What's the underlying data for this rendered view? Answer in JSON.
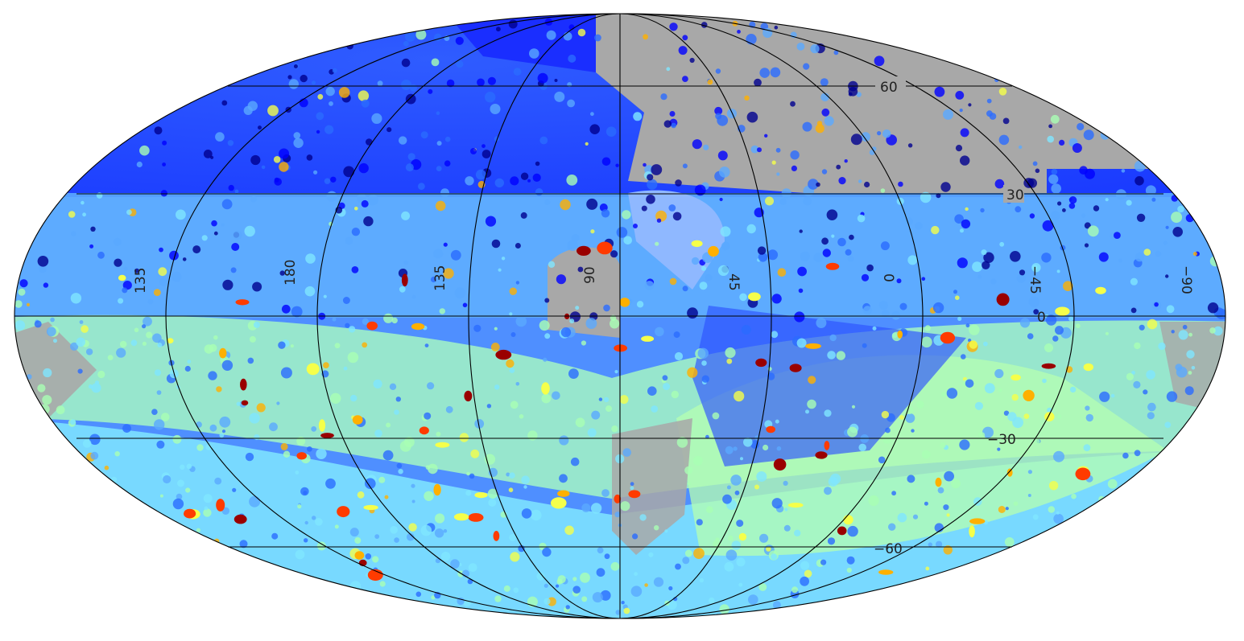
{
  "map": {
    "projection": "mollweide",
    "grid_color": "#000000",
    "no_data_color": "#a8a8a8",
    "colormap": [
      "#00008f",
      "#0000ff",
      "#2a6bff",
      "#5aa9ff",
      "#7fe6ff",
      "#a9ffb4",
      "#f5ff4a",
      "#ffb000",
      "#ff3b00",
      "#9a0000"
    ],
    "background_levels": {
      "north": 0.15,
      "south": 0.45
    }
  },
  "labels": {
    "lat_60": "60",
    "lat_30": "30",
    "lat_0": "0",
    "lat_m30": "−30",
    "lat_m60": "−60",
    "lon_left_135": "135",
    "lon_180": "180",
    "lon_135": "135",
    "lon_90": "90",
    "lon_45": "45",
    "lon_0": "0",
    "lon_m45": "−45",
    "lon_m90": "−90"
  }
}
